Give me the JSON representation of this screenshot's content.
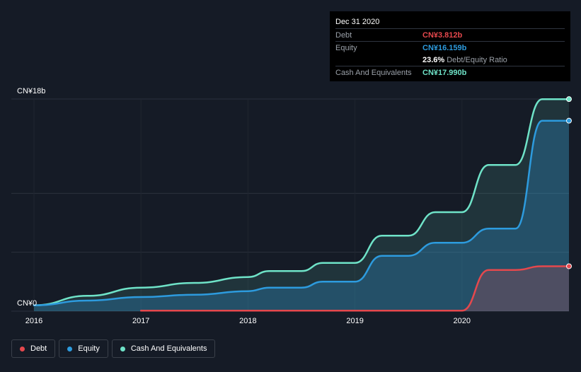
{
  "tooltip": {
    "date": "Dec 31 2020",
    "rows": [
      {
        "label": "Debt",
        "value": "CN¥3.812b",
        "color": "#e5484d"
      },
      {
        "label": "Equity",
        "value": "CN¥16.159b",
        "color": "#2d9bde"
      },
      {
        "label": "Cash And Equivalents",
        "value": "CN¥17.990b",
        "color": "#6fe3c8"
      }
    ],
    "ratio_value": "23.6%",
    "ratio_label": "Debt/Equity Ratio"
  },
  "legend": [
    {
      "label": "Debt",
      "color": "#e5484d"
    },
    {
      "label": "Equity",
      "color": "#2d9bde"
    },
    {
      "label": "Cash And Equivalents",
      "color": "#6fe3c8"
    }
  ],
  "chart_data": {
    "type": "area",
    "x_ticks": [
      "2016",
      "2017",
      "2018",
      "2019",
      "2020"
    ],
    "y_ticks": [
      "CN¥0",
      "CN¥18b"
    ],
    "ylim": [
      0,
      18
    ],
    "xlim": [
      2016.0,
      2021.0
    ],
    "grid": true,
    "legend_position": "bottom-left",
    "series": [
      {
        "name": "Cash And Equivalents",
        "color": "#6fe3c8",
        "points": [
          [
            2016.0,
            0.5
          ],
          [
            2016.5,
            1.3
          ],
          [
            2017.0,
            2.0
          ],
          [
            2017.5,
            2.4
          ],
          [
            2018.0,
            2.9
          ],
          [
            2018.2,
            3.4
          ],
          [
            2018.5,
            3.4
          ],
          [
            2018.7,
            4.1
          ],
          [
            2019.0,
            4.1
          ],
          [
            2019.25,
            6.4
          ],
          [
            2019.5,
            6.4
          ],
          [
            2019.75,
            8.4
          ],
          [
            2020.0,
            8.4
          ],
          [
            2020.25,
            12.4
          ],
          [
            2020.5,
            12.4
          ],
          [
            2020.75,
            17.99
          ],
          [
            2021.0,
            17.99
          ]
        ]
      },
      {
        "name": "Equity",
        "color": "#2d9bde",
        "points": [
          [
            2016.0,
            0.5
          ],
          [
            2016.5,
            0.9
          ],
          [
            2017.0,
            1.2
          ],
          [
            2017.5,
            1.4
          ],
          [
            2018.0,
            1.7
          ],
          [
            2018.2,
            2.0
          ],
          [
            2018.5,
            2.0
          ],
          [
            2018.7,
            2.5
          ],
          [
            2019.0,
            2.5
          ],
          [
            2019.25,
            4.7
          ],
          [
            2019.5,
            4.7
          ],
          [
            2019.75,
            5.8
          ],
          [
            2020.0,
            5.8
          ],
          [
            2020.25,
            7.0
          ],
          [
            2020.5,
            7.0
          ],
          [
            2020.75,
            16.159
          ],
          [
            2021.0,
            16.159
          ]
        ]
      },
      {
        "name": "Debt",
        "color": "#e5484d",
        "points": [
          [
            2017.0,
            0.05
          ],
          [
            2019.5,
            0.05
          ],
          [
            2020.0,
            0.05
          ],
          [
            2020.25,
            3.5
          ],
          [
            2020.5,
            3.5
          ],
          [
            2020.75,
            3.812
          ],
          [
            2021.0,
            3.812
          ]
        ]
      }
    ]
  }
}
